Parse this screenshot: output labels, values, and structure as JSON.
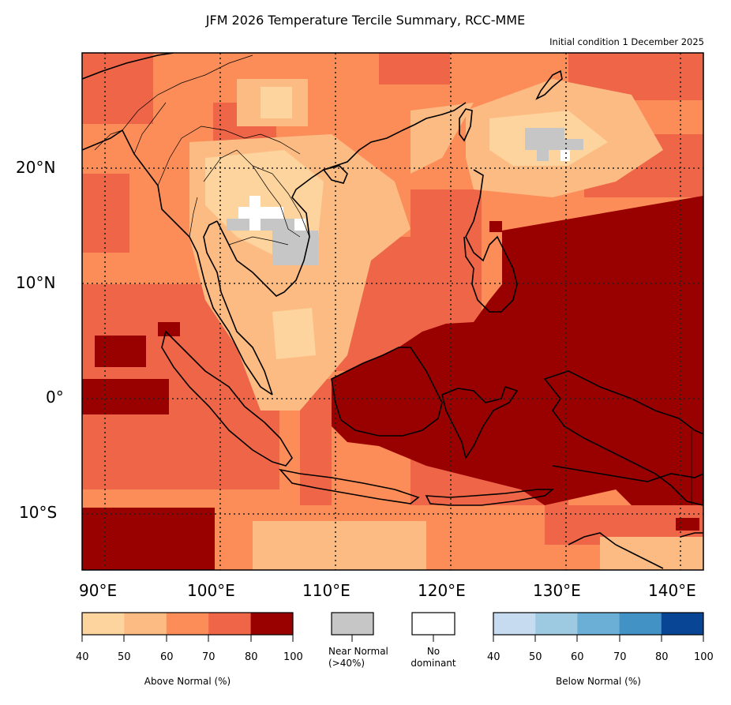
{
  "title": "JFM 2026 Temperature Tercile Summary, RCC-MME",
  "subtitle": "Initial condition 1 December 2025",
  "map": {
    "region": "Southeast Asia",
    "lon_range": [
      88,
      142
    ],
    "lat_range": [
      -15,
      30
    ],
    "lon_ticks": [
      "90°E",
      "100°E",
      "110°E",
      "120°E",
      "130°E",
      "140°E"
    ],
    "lat_ticks": [
      "20°N",
      "10°N",
      "0°",
      "10°S"
    ],
    "gridlines": "dotted"
  },
  "legend": {
    "above": {
      "caption": "Above Normal (%)",
      "ticks": [
        "40",
        "50",
        "60",
        "70",
        "80",
        "100"
      ],
      "colors": [
        "#fdd49e",
        "#fdbb84",
        "#fc8d59",
        "#ef6548",
        "#990000"
      ]
    },
    "near": {
      "caption_line1": "Near Normal",
      "caption_line2": "(>40%)",
      "color": "#c6c6c6"
    },
    "none": {
      "caption_line1": "No",
      "caption_line2": "dominant",
      "color": "#ffffff"
    },
    "below": {
      "caption": "Below Normal (%)",
      "ticks": [
        "40",
        "50",
        "60",
        "70",
        "80",
        "100"
      ],
      "colors": [
        "#c6dbef",
        "#9ecae1",
        "#6baed6",
        "#4292c6",
        "#084594"
      ]
    }
  }
}
